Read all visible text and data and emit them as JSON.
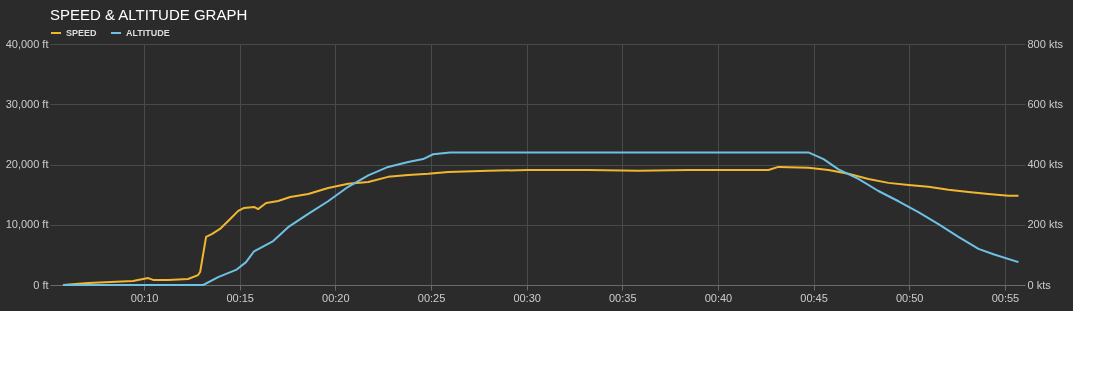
{
  "chart_data": {
    "type": "line",
    "title": "SPEED & ALTITUDE GRAPH",
    "xlim": [
      0.0847,
      0.9342
    ],
    "xticks": [
      {
        "value": 0.1667,
        "label": "00:10"
      },
      {
        "value": 0.25,
        "label": "00:15"
      },
      {
        "value": 0.3333,
        "label": "00:20"
      },
      {
        "value": 0.4167,
        "label": "00:25"
      },
      {
        "value": 0.5,
        "label": "00:30"
      },
      {
        "value": 0.5833,
        "label": "00:35"
      },
      {
        "value": 0.6667,
        "label": "00:40"
      },
      {
        "value": 0.75,
        "label": "00:45"
      },
      {
        "value": 0.8333,
        "label": "00:50"
      },
      {
        "value": 0.9167,
        "label": "00:55"
      }
    ],
    "ylim": [
      0,
      40000
    ],
    "yticks": [
      {
        "value": 0,
        "label": "0 ft"
      },
      {
        "value": 10000,
        "label": "10,000 ft"
      },
      {
        "value": 20000,
        "label": "20,000 ft"
      },
      {
        "value": 30000,
        "label": "30,000 ft"
      },
      {
        "value": 40000,
        "label": "40,000 ft"
      }
    ],
    "y2lim": [
      0,
      800
    ],
    "y2ticks": [
      {
        "value": 0,
        "label": "0 kts"
      },
      {
        "value": 200,
        "label": "200 kts"
      },
      {
        "value": 400,
        "label": "400 kts"
      },
      {
        "value": 600,
        "label": "600 kts"
      },
      {
        "value": 800,
        "label": "800 kts"
      }
    ],
    "grid": true,
    "legend": "top left",
    "marker": "none",
    "line_style": "solid",
    "series": [
      {
        "name": "SPEED",
        "color": "#f2b630",
        "axis": "y2",
        "x": [
          0.096,
          0.1178,
          0.157,
          0.1658,
          0.1702,
          0.1745,
          0.1877,
          0.205,
          0.2137,
          0.2155,
          0.2207,
          0.226,
          0.2328,
          0.2417,
          0.2487,
          0.2538,
          0.2625,
          0.266,
          0.273,
          0.2835,
          0.294,
          0.3097,
          0.327,
          0.3445,
          0.362,
          0.3793,
          0.3968,
          0.4142,
          0.4317,
          0.4665,
          0.5013,
          0.5537,
          0.5973,
          0.6408,
          0.6932,
          0.7107,
          0.7193,
          0.7455,
          0.763,
          0.7803,
          0.7978,
          0.8152,
          0.8327,
          0.85,
          0.8675,
          0.885,
          0.9023,
          0.9198,
          0.9285
        ],
        "values": [
          0,
          7,
          13,
          20,
          23,
          17,
          17,
          20,
          33,
          43,
          160,
          170,
          186,
          219,
          246,
          256,
          259,
          252,
          272,
          279,
          292,
          302,
          322,
          336,
          342,
          359,
          365,
          369,
          375,
          379,
          382,
          382,
          379,
          382,
          382,
          382,
          392,
          389,
          382,
          369,
          352,
          339,
          332,
          326,
          316,
          309,
          302,
          296,
          296
        ]
      },
      {
        "name": "ALTITUDE",
        "color": "#6ec1e4",
        "axis": "y",
        "x": [
          0.096,
          0.2182,
          0.2312,
          0.2468,
          0.2555,
          0.2625,
          0.2792,
          0.2922,
          0.3097,
          0.327,
          0.3445,
          0.362,
          0.3793,
          0.3968,
          0.4098,
          0.4185,
          0.4333,
          0.7455,
          0.7587,
          0.7717,
          0.789,
          0.8065,
          0.824,
          0.8413,
          0.8588,
          0.8762,
          0.8937,
          0.9067,
          0.9285
        ],
        "values": [
          0,
          0,
          1300,
          2500,
          3800,
          5600,
          7300,
          9600,
          11800,
          13900,
          16300,
          18200,
          19600,
          20400,
          20900,
          21700,
          22000,
          22000,
          20900,
          19200,
          17600,
          15600,
          13900,
          12100,
          10100,
          8000,
          6000,
          5100,
          3800
        ]
      }
    ]
  }
}
